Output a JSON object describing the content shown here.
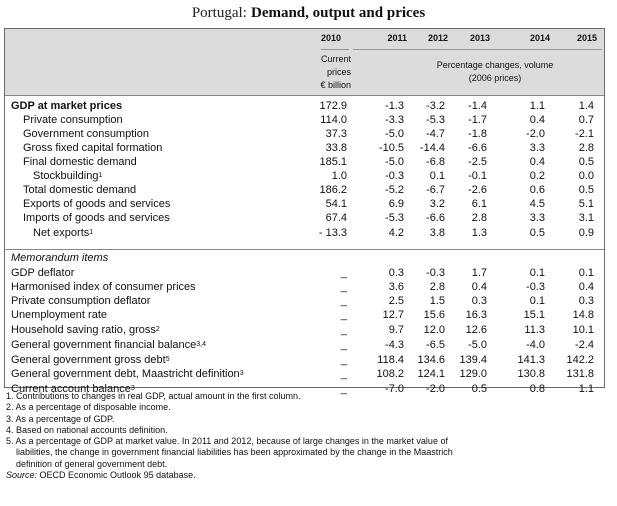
{
  "title": {
    "country": "Portugal:",
    "rest": "Demand, output and prices"
  },
  "header": {
    "years": [
      "2010",
      "2011",
      "2012",
      "2013",
      "2014",
      "2015"
    ],
    "first_col_note": [
      "Current",
      "prices",
      "€ billion"
    ],
    "rest_note": [
      "Percentage changes, volume",
      "(2006 prices)"
    ]
  },
  "rows": [
    {
      "label": "GDP at market prices",
      "sup": "",
      "values": [
        "172.9",
        "-1.3",
        "-3.2",
        "-1.4",
        "1.1",
        "1.4"
      ]
    },
    {
      "label": "Private consumption",
      "sup": "",
      "values": [
        "114.0",
        "-3.3",
        "-5.3",
        "-1.7",
        "0.4",
        "0.7"
      ]
    },
    {
      "label": "Government consumption",
      "sup": "",
      "values": [
        "37.3",
        "-5.0",
        "-4.7",
        "-1.8",
        "-2.0",
        "-2.1"
      ]
    },
    {
      "label": "Gross fixed capital formation",
      "sup": "",
      "values": [
        "33.8",
        "-10.5",
        "-14.4",
        "-6.6",
        "3.3",
        "2.8"
      ]
    },
    {
      "label": "Final domestic demand",
      "sup": "",
      "values": [
        "185.1",
        "-5.0",
        "-6.8",
        "-2.5",
        "0.4",
        "0.5"
      ]
    },
    {
      "label": "Stockbuilding",
      "sup": "1",
      "values": [
        "1.0",
        "-0.3",
        "0.1",
        "-0.1",
        "0.2",
        "0.0"
      ]
    },
    {
      "label": "Total domestic demand",
      "sup": "",
      "values": [
        "186.2",
        "-5.2",
        "-6.7",
        "-2.6",
        "0.6",
        "0.5"
      ]
    },
    {
      "label": "Exports of goods and services",
      "sup": "",
      "values": [
        "54.1",
        "6.9",
        "3.2",
        "6.1",
        "4.5",
        "5.1"
      ]
    },
    {
      "label": "Imports of goods and services",
      "sup": "",
      "values": [
        "67.4",
        "-5.3",
        "-6.6",
        "2.8",
        "3.3",
        "3.1"
      ]
    },
    {
      "label": "Net exports",
      "sup": "1",
      "values": [
        "- 13.3",
        "4.2",
        "3.8",
        "1.3",
        "0.5",
        "0.9"
      ]
    }
  ],
  "memo_title": "Memorandum items",
  "memo_rows": [
    {
      "label": "GDP deflator",
      "sup": "",
      "values": [
        "_",
        "0.3",
        "-0.3",
        "1.7",
        "0.1",
        "0.1"
      ]
    },
    {
      "label": "Harmonised index of consumer prices",
      "sup": "",
      "values": [
        "_",
        "3.6",
        "2.8",
        "0.4",
        "-0.3",
        "0.4"
      ]
    },
    {
      "label": "Private consumption deflator",
      "sup": "",
      "values": [
        "_",
        "2.5",
        "1.5",
        "0.3",
        "0.1",
        "0.3"
      ]
    },
    {
      "label": "Unemployment rate",
      "sup": "",
      "values": [
        "_",
        "12.7",
        "15.6",
        "16.3",
        "15.1",
        "14.8"
      ]
    },
    {
      "label": "Household saving ratio, gross",
      "sup": "2",
      "values": [
        "_",
        "9.7",
        "12.0",
        "12.6",
        "11.3",
        "10.1"
      ]
    },
    {
      "label": "General government financial balance",
      "sup": "3,4",
      "values": [
        "_",
        "-4.3",
        "-6.5",
        "-5.0",
        "-4.0",
        "-2.4"
      ]
    },
    {
      "label": "General government gross debt",
      "sup": "5",
      "values": [
        "_",
        "118.4",
        "134.6",
        "139.4",
        "141.3",
        "142.2"
      ]
    },
    {
      "label": "General government debt, Maastricht definition",
      "sup": "3",
      "values": [
        "_",
        "108.2",
        "124.1",
        "129.0",
        "130.8",
        "131.8"
      ]
    },
    {
      "label": "Current account balance",
      "sup": "3",
      "values": [
        "_",
        "-7.0",
        "-2.0",
        "0.5",
        "0.8",
        "1.1"
      ]
    }
  ],
  "notes": [
    "1. Contributions to changes in real GDP, actual amount in the first column.",
    "2. As a percentage of disposable income.",
    "3. As a percentage of GDP.",
    "4. Based on national accounts definition.",
    "5. As a percentage of GDP at market value. In 2011 and 2012, because of large changes in the market value of",
    "liabilities, the change in government financial liabilities has been approximated by the change in the Maastrich",
    "definition of general government debt."
  ],
  "source": {
    "label": "Source:",
    "text": " OECD Economic Outlook 95 database."
  }
}
